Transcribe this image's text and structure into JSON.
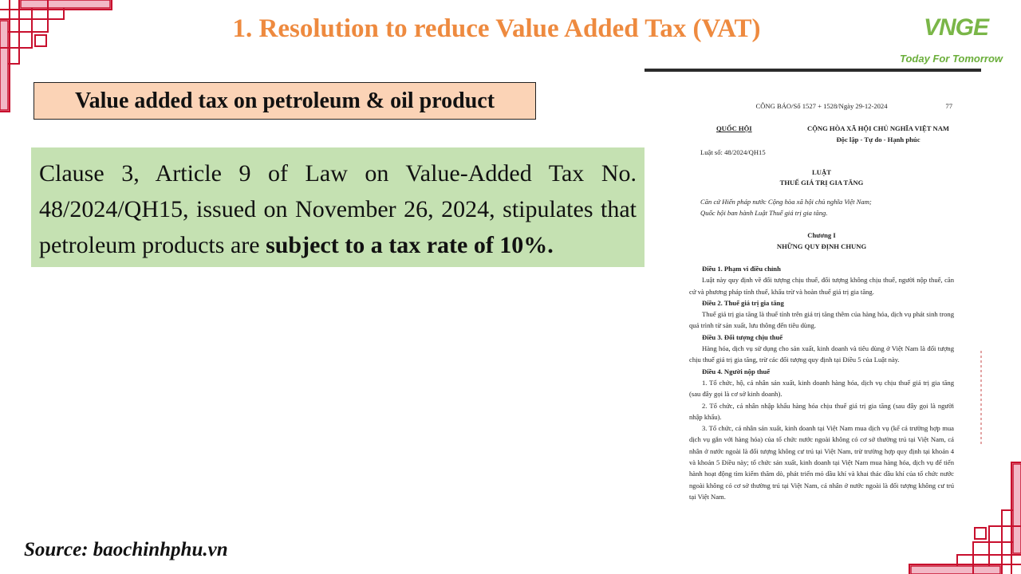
{
  "header": {
    "title": "1. Resolution to reduce Value Added Tax (VAT)",
    "logo_brand": "VNGE",
    "logo_tagline": "Today For Tomorrow"
  },
  "subtitle": "Value added tax on petroleum & oil product",
  "clause": {
    "text_plain": "Clause 3, Article 9 of Law on Value-Added Tax No. 48/2024/QH15, issued on November 26, 2024, stipulates that petroleum products are ",
    "text_bold": "subject to a tax rate of 10%."
  },
  "source": "Source: baochinhphu.vn",
  "document": {
    "gazette": "CÔNG BÁO/Số 1527 + 1528/Ngày 29-12-2024",
    "page_number": "77",
    "organization": "QUỐC HỘI",
    "nation": "CỘNG HÒA XÃ HỘI CHỦ NGHĨA VIỆT NAM",
    "motto": "Độc lập - Tự do - Hạnh phúc",
    "law_number": "Luật số: 48/2024/QH15",
    "law_label": "LUẬT",
    "law_name": "THUẾ GIÁ TRỊ GIA TĂNG",
    "preamble_1": "Căn cứ Hiến pháp nước Cộng hòa xã hội chủ nghĩa Việt Nam;",
    "preamble_2": "Quốc hội ban hành Luật Thuế giá trị gia tăng.",
    "chapter": "Chương I",
    "chapter_name": "NHỮNG QUY ĐỊNH CHUNG",
    "art1_title": "Điều 1. Phạm vi điều chỉnh",
    "art1_text": "Luật này quy định về đối tượng chịu thuế, đối tượng không chịu thuế, người nộp thuế, căn cứ và phương pháp tính thuế, khấu trừ và hoàn thuế giá trị gia tăng.",
    "art2_title": "Điều 2. Thuế giá trị gia tăng",
    "art2_text": "Thuế giá trị gia tăng là thuế tính trên giá trị tăng thêm của hàng hóa, dịch vụ phát sinh trong quá trình từ sản xuất, lưu thông đến tiêu dùng.",
    "art3_title": "Điều 3. Đối tượng chịu thuế",
    "art3_text": "Hàng hóa, dịch vụ sử dụng cho sản xuất, kinh doanh và tiêu dùng ở Việt Nam là đối tượng chịu thuế giá trị gia tăng, trừ các đối tượng quy định tại Điều 5 của Luật này.",
    "art4_title": "Điều 4. Người nộp thuế",
    "art4_p1": "1. Tổ chức, hộ, cá nhân sản xuất, kinh doanh hàng hóa, dịch vụ chịu thuế giá trị gia tăng (sau đây gọi là cơ sở kinh doanh).",
    "art4_p2": "2. Tổ chức, cá nhân nhập khẩu hàng hóa chịu thuế giá trị gia tăng (sau đây gọi là người nhập khẩu).",
    "art4_p3": "3. Tổ chức, cá nhân sản xuất, kinh doanh tại Việt Nam mua dịch vụ (kể cả trường hợp mua dịch vụ gắn với hàng hóa) của tổ chức nước ngoài không có cơ sở thường trú tại Việt Nam, cá nhân ở nước ngoài là đối tượng không cư trú tại Việt Nam, trừ trường hợp quy định tại khoản 4 và khoản 5 Điều này; tổ chức sản xuất, kinh doanh tại Việt Nam mua hàng hóa, dịch vụ để tiến hành hoạt động tìm kiếm thăm dò, phát triển mỏ dầu khí và khai thác dầu khí của tổ chức nước ngoài không có cơ sở thường trú tại Việt Nam, cá nhân ở nước ngoài là đối tượng không cư trú tại Việt Nam."
  },
  "colors": {
    "title": "#ee8a3f",
    "subtitle_bg": "#fbd3b6",
    "clause_bg": "#c5e1b2",
    "ornament": "#c8102e",
    "ornament_fill": "#f2b8c6",
    "logo_green": "#7ab648"
  }
}
